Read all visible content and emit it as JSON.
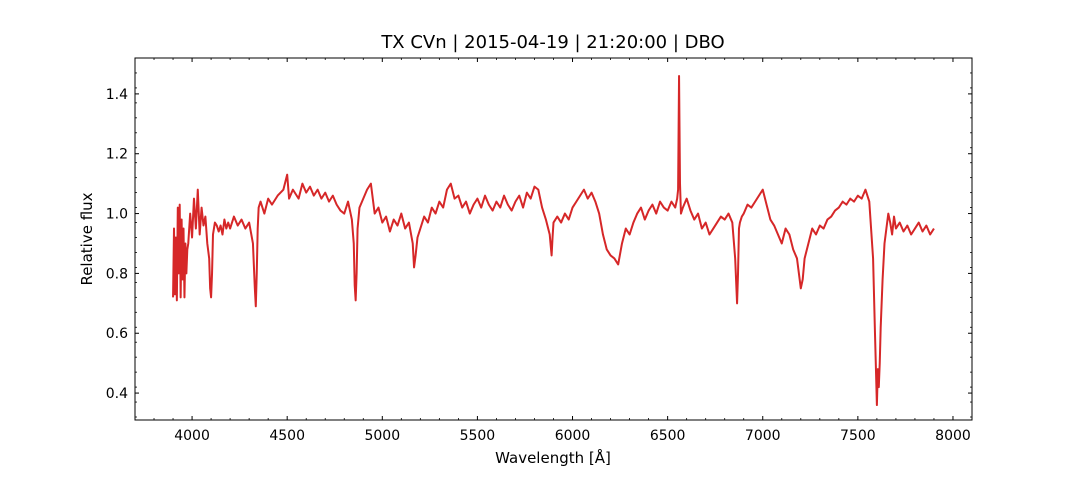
{
  "chart_data": {
    "type": "line",
    "title": "TX CVn | 2015-04-19 | 21:20:00 | DBO",
    "xlabel": "Wavelength [Å]",
    "ylabel": "Relative flux",
    "xlim": [
      3700,
      8100
    ],
    "ylim": [
      0.31,
      1.52
    ],
    "xticks": [
      4000,
      4500,
      5000,
      5500,
      6000,
      6500,
      7000,
      7500,
      8000
    ],
    "yticks": [
      0.4,
      0.6,
      0.8,
      1.0,
      1.2,
      1.4
    ],
    "xtick_labels": [
      "4000",
      "4500",
      "5000",
      "5500",
      "6000",
      "6500",
      "7000",
      "7500",
      "8000"
    ],
    "ytick_labels": [
      "0.4",
      "0.6",
      "0.8",
      "1.0",
      "1.2",
      "1.4"
    ],
    "grid": false,
    "series": [
      {
        "color": "#d62728",
        "x": [
          3900,
          3905,
          3910,
          3915,
          3920,
          3925,
          3930,
          3935,
          3940,
          3945,
          3950,
          3955,
          3960,
          3965,
          3970,
          3975,
          3980,
          3990,
          4000,
          4010,
          4020,
          4030,
          4040,
          4050,
          4060,
          4070,
          4080,
          4090,
          4095,
          4100,
          4105,
          4110,
          4120,
          4130,
          4140,
          4150,
          4160,
          4170,
          4180,
          4190,
          4200,
          4220,
          4240,
          4260,
          4280,
          4300,
          4320,
          4330,
          4335,
          4340,
          4345,
          4350,
          4360,
          4380,
          4400,
          4420,
          4450,
          4480,
          4500,
          4510,
          4530,
          4560,
          4580,
          4600,
          4620,
          4640,
          4660,
          4680,
          4700,
          4720,
          4740,
          4760,
          4780,
          4800,
          4820,
          4840,
          4850,
          4855,
          4860,
          4865,
          4870,
          4880,
          4900,
          4920,
          4940,
          4960,
          4980,
          5000,
          5020,
          5040,
          5060,
          5080,
          5100,
          5120,
          5140,
          5160,
          5167,
          5175,
          5185,
          5200,
          5220,
          5240,
          5260,
          5280,
          5300,
          5320,
          5340,
          5360,
          5380,
          5400,
          5420,
          5440,
          5460,
          5480,
          5500,
          5520,
          5540,
          5560,
          5580,
          5600,
          5620,
          5640,
          5660,
          5680,
          5700,
          5720,
          5740,
          5760,
          5780,
          5800,
          5820,
          5840,
          5860,
          5880,
          5890,
          5895,
          5900,
          5920,
          5940,
          5960,
          5980,
          6000,
          6020,
          6040,
          6060,
          6080,
          6100,
          6120,
          6140,
          6160,
          6180,
          6200,
          6220,
          6240,
          6260,
          6280,
          6300,
          6320,
          6340,
          6360,
          6380,
          6400,
          6420,
          6440,
          6460,
          6480,
          6500,
          6520,
          6540,
          6550,
          6555,
          6560,
          6565,
          6570,
          6580,
          6600,
          6620,
          6640,
          6660,
          6680,
          6700,
          6720,
          6740,
          6760,
          6780,
          6800,
          6820,
          6840,
          6855,
          6865,
          6870,
          6875,
          6880,
          6890,
          6900,
          6920,
          6940,
          6960,
          6980,
          7000,
          7020,
          7040,
          7060,
          7080,
          7100,
          7120,
          7140,
          7160,
          7180,
          7190,
          7200,
          7210,
          7220,
          7240,
          7260,
          7280,
          7300,
          7320,
          7340,
          7360,
          7380,
          7400,
          7420,
          7440,
          7460,
          7480,
          7500,
          7520,
          7540,
          7560,
          7580,
          7590,
          7595,
          7600,
          7605,
          7610,
          7615,
          7620,
          7630,
          7640,
          7650,
          7660,
          7670,
          7680,
          7690,
          7700,
          7720,
          7740,
          7760,
          7780,
          7800,
          7820,
          7840,
          7860,
          7880,
          7900
        ],
        "y": [
          0.72,
          0.95,
          0.73,
          0.92,
          0.71,
          1.02,
          0.8,
          1.03,
          0.72,
          0.98,
          0.78,
          0.95,
          0.72,
          0.9,
          0.8,
          0.88,
          0.9,
          1.0,
          0.92,
          1.05,
          0.95,
          1.08,
          0.93,
          1.02,
          0.96,
          0.99,
          0.9,
          0.85,
          0.75,
          0.72,
          0.8,
          0.93,
          0.97,
          0.96,
          0.94,
          0.96,
          0.93,
          0.98,
          0.95,
          0.97,
          0.95,
          0.99,
          0.96,
          0.98,
          0.95,
          0.97,
          0.9,
          0.75,
          0.69,
          0.8,
          0.95,
          1.02,
          1.04,
          1.0,
          1.05,
          1.03,
          1.06,
          1.08,
          1.13,
          1.05,
          1.08,
          1.05,
          1.1,
          1.07,
          1.09,
          1.06,
          1.08,
          1.05,
          1.07,
          1.04,
          1.06,
          1.03,
          1.01,
          1.0,
          1.04,
          0.98,
          0.9,
          0.76,
          0.71,
          0.8,
          0.95,
          1.02,
          1.05,
          1.08,
          1.1,
          1.0,
          1.02,
          0.97,
          0.99,
          0.94,
          0.98,
          0.96,
          1.0,
          0.95,
          0.97,
          0.9,
          0.82,
          0.86,
          0.92,
          0.95,
          0.99,
          0.97,
          1.02,
          1.0,
          1.04,
          1.02,
          1.08,
          1.1,
          1.05,
          1.06,
          1.02,
          1.04,
          1.0,
          1.03,
          1.05,
          1.02,
          1.06,
          1.03,
          1.01,
          1.04,
          1.02,
          1.06,
          1.03,
          1.01,
          1.04,
          1.06,
          1.02,
          1.07,
          1.05,
          1.09,
          1.08,
          1.02,
          0.98,
          0.93,
          0.86,
          0.92,
          0.97,
          0.99,
          0.97,
          1.0,
          0.98,
          1.02,
          1.04,
          1.06,
          1.08,
          1.05,
          1.07,
          1.04,
          1.0,
          0.93,
          0.88,
          0.86,
          0.85,
          0.83,
          0.9,
          0.95,
          0.93,
          0.97,
          1.0,
          1.02,
          0.98,
          1.01,
          1.03,
          1.0,
          1.04,
          1.02,
          1.01,
          1.04,
          1.02,
          1.05,
          1.08,
          1.46,
          1.1,
          1.0,
          1.02,
          1.05,
          1.01,
          0.98,
          1.0,
          0.95,
          0.97,
          0.93,
          0.95,
          0.97,
          0.99,
          0.98,
          1.0,
          0.97,
          0.85,
          0.7,
          0.8,
          0.95,
          0.97,
          0.99,
          1.0,
          1.03,
          1.02,
          1.04,
          1.06,
          1.08,
          1.03,
          0.98,
          0.96,
          0.93,
          0.9,
          0.95,
          0.93,
          0.88,
          0.85,
          0.8,
          0.75,
          0.78,
          0.85,
          0.9,
          0.95,
          0.93,
          0.96,
          0.95,
          0.98,
          0.99,
          1.01,
          1.02,
          1.04,
          1.03,
          1.05,
          1.04,
          1.06,
          1.05,
          1.08,
          1.04,
          0.85,
          0.6,
          0.48,
          0.36,
          0.48,
          0.42,
          0.5,
          0.62,
          0.78,
          0.9,
          0.95,
          1.0,
          0.97,
          0.93,
          0.99,
          0.95,
          0.97,
          0.94,
          0.96,
          0.93,
          0.95,
          0.97,
          0.94,
          0.96,
          0.93,
          0.95
        ]
      }
    ]
  }
}
